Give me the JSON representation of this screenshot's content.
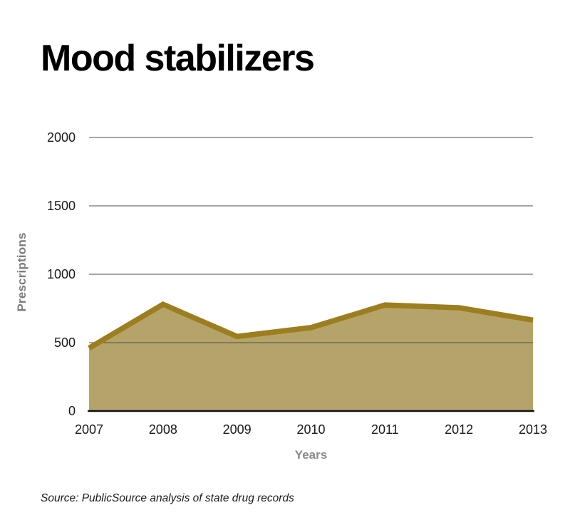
{
  "page": {
    "background": "#ffffff"
  },
  "header": {
    "title": "Mood stabilizers"
  },
  "chart_data": {
    "type": "area",
    "categories": [
      "2007",
      "2008",
      "2009",
      "2010",
      "2011",
      "2012",
      "2013"
    ],
    "series": [
      {
        "name": "Prescriptions",
        "values": [
          460,
          780,
          545,
          610,
          775,
          755,
          665
        ]
      }
    ],
    "title": "Mood stabilizers",
    "xlabel": "Years",
    "ylabel": "Prescriptions",
    "yticks": [
      0,
      500,
      1000,
      1500,
      2000
    ],
    "ylim": [
      0,
      2000
    ],
    "grid": true,
    "legend": "none",
    "colors": {
      "area_fill": "#b4a469",
      "line_stroke": "#9c7e1e",
      "gridline": "#4d4d4d",
      "axis_baseline": "#111111",
      "tick_label": "#1a1a1a",
      "axis_title": "#7d7d7d"
    }
  },
  "footer": {
    "source": "Source: PublicSource analysis of state drug records"
  }
}
